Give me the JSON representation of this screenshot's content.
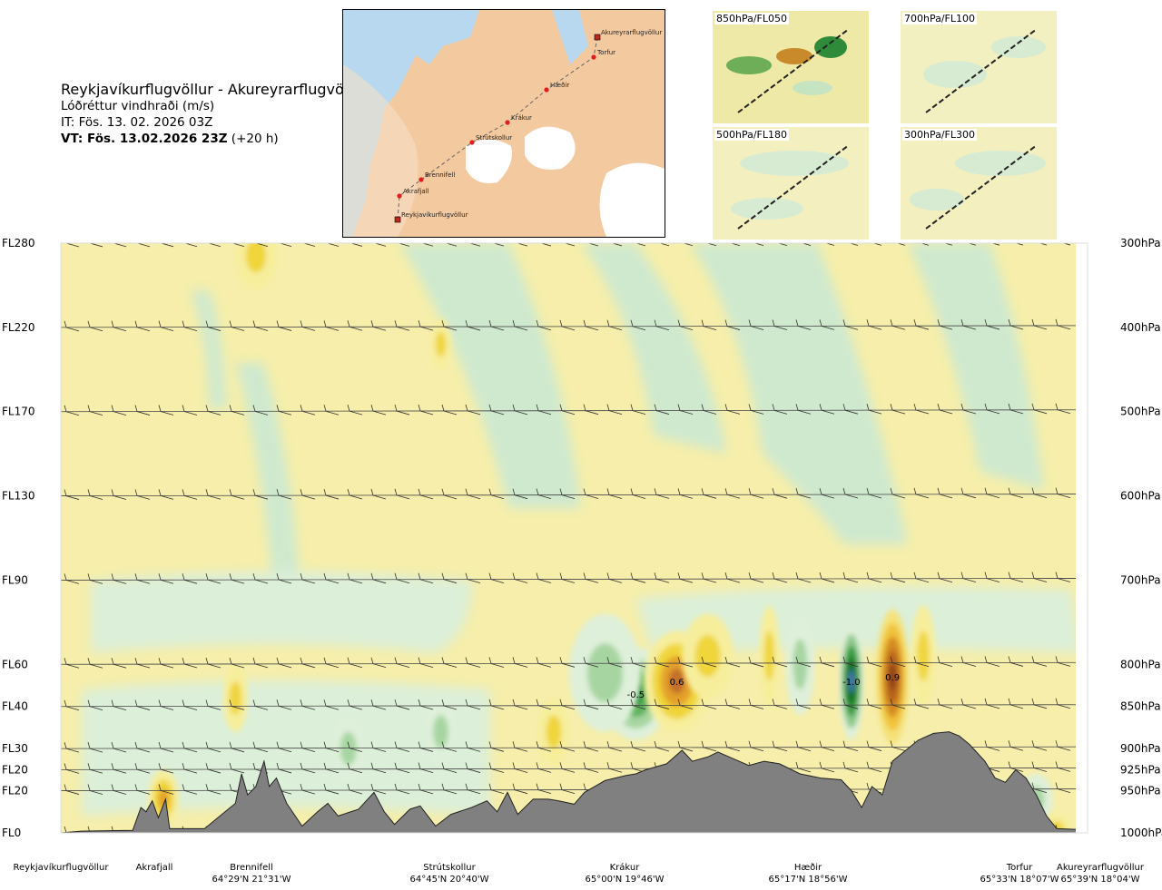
{
  "title": {
    "route": "Reykjavíkurflugvöllur - Akureyrarflugvöllur",
    "parameter": "Lóðréttur vindhraði (m/s)",
    "issue_time": "IT: Fös. 13. 02. 2026 03Z",
    "valid_time": "VT: Fös. 13.02.2026 23Z",
    "lead": " (+20 h)"
  },
  "map": {
    "points": [
      "Akureyrarflugvöllur",
      "Torfur",
      "Hæðir",
      "Krákur",
      "Strútskollur",
      "Brennifell",
      "Akrafjall",
      "Reykjavíkurflugvöllur"
    ]
  },
  "mini_maps": [
    {
      "label": "850hPa/FL050"
    },
    {
      "label": "700hPa/FL100"
    },
    {
      "label": "500hPa/FL180"
    },
    {
      "label": "300hPa/FL300"
    }
  ],
  "chart_data": {
    "type": "heatmap",
    "title": "Reykjavíkurflugvöllur - Akureyrarflugvöllur",
    "subtitle": "Lóðréttur vindhraði (m/s)",
    "xlabel": "",
    "ylabel": "",
    "x_range": [
      0,
      100
    ],
    "y_range_hPa": [
      1000,
      300
    ],
    "levels": [
      {
        "fl": "FL280",
        "hpa": "300hPa",
        "p": 300
      },
      {
        "fl": "FL220",
        "hpa": "400hPa",
        "p": 400
      },
      {
        "fl": "FL170",
        "hpa": "500hPa",
        "p": 500
      },
      {
        "fl": "FL130",
        "hpa": "600hPa",
        "p": 600
      },
      {
        "fl": "FL90",
        "hpa": "700hPa",
        "p": 700
      },
      {
        "fl": "FL60",
        "hpa": "800hPa",
        "p": 800
      },
      {
        "fl": "FL40",
        "hpa": "850hPa",
        "p": 850
      },
      {
        "fl": "FL30",
        "hpa": "900hPa",
        "p": 900
      },
      {
        "fl": "FL20",
        "hpa": "925hPa",
        "p": 925
      },
      {
        "fl": "FL20",
        "hpa": "950hPa",
        "p": 950
      },
      {
        "fl": "FL0",
        "hpa": "1000hPa",
        "p": 1000
      }
    ],
    "waypoints": [
      {
        "name": "Reykjavíkurflugvöllur",
        "coord": "",
        "x": 0
      },
      {
        "name": "Akrafjall",
        "coord": "",
        "x": 9
      },
      {
        "name": "Brennifell",
        "coord": "64°29'N 21°31'W",
        "x": 19
      },
      {
        "name": "Strútskollur",
        "coord": "64°45'N 20°40'W",
        "x": 38
      },
      {
        "name": "Krákur",
        "coord": "65°00'N 19°46'W",
        "x": 57
      },
      {
        "name": "Hæðir",
        "coord": "65°17'N 18°56'W",
        "x": 75
      },
      {
        "name": "Torfur",
        "coord": "65°33'N 18°07'W",
        "x": 94
      },
      {
        "name": "Akureyrarflugvöllur",
        "coord": "65°39'N 18°04'W",
        "x": 100
      }
    ],
    "cells": [
      {
        "x": 56,
        "p": 835,
        "rx": 3.2,
        "rp": 55,
        "value": -0.5,
        "label": "-0.5"
      },
      {
        "x": 53,
        "p": 810,
        "rx": 3.5,
        "rp": 70,
        "value": -0.3,
        "label": ""
      },
      {
        "x": 60,
        "p": 820,
        "rx": 3.2,
        "rp": 60,
        "value": 0.6,
        "label": "0.6"
      },
      {
        "x": 63,
        "p": 790,
        "rx": 2.5,
        "rp": 50,
        "value": 0.3,
        "label": ""
      },
      {
        "x": 77,
        "p": 820,
        "rx": 1.2,
        "rp": 70,
        "value": -1.0,
        "label": "-1.0"
      },
      {
        "x": 81,
        "p": 815,
        "rx": 1.6,
        "rp": 80,
        "value": 0.9,
        "label": "0.9"
      },
      {
        "x": 69,
        "p": 790,
        "rx": 1.0,
        "rp": 60,
        "value": 0.3,
        "label": ""
      },
      {
        "x": 72,
        "p": 800,
        "rx": 1.4,
        "rp": 60,
        "value": -0.2,
        "label": ""
      },
      {
        "x": 84,
        "p": 790,
        "rx": 1.2,
        "rp": 60,
        "value": 0.3,
        "label": ""
      },
      {
        "x": 10,
        "p": 960,
        "rx": 1.5,
        "rp": 35,
        "value": 0.4,
        "label": ""
      },
      {
        "x": 28,
        "p": 900,
        "rx": 1.6,
        "rp": 40,
        "value": -0.2,
        "label": ""
      },
      {
        "x": 17,
        "p": 840,
        "rx": 1.2,
        "rp": 40,
        "value": 0.2,
        "label": ""
      },
      {
        "x": 95,
        "p": 960,
        "rx": 1.6,
        "rp": 30,
        "value": -0.2,
        "label": ""
      },
      {
        "x": 97,
        "p": 995,
        "rx": 1.5,
        "rp": 18,
        "value": 0.3,
        "label": ""
      },
      {
        "x": 19,
        "p": 315,
        "rx": 2.0,
        "rp": 40,
        "value": 0.1,
        "label": ""
      },
      {
        "x": 37,
        "p": 420,
        "rx": 1.0,
        "rp": 30,
        "value": 0.1,
        "label": ""
      },
      {
        "x": 48,
        "p": 880,
        "rx": 1.5,
        "rp": 40,
        "value": 0.3,
        "label": ""
      },
      {
        "x": 37,
        "p": 880,
        "rx": 1.5,
        "rp": 40,
        "value": -0.2,
        "label": ""
      }
    ]
  }
}
